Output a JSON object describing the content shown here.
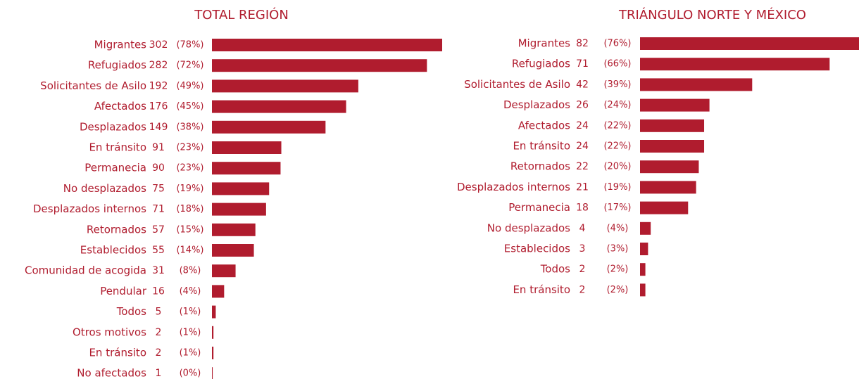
{
  "chart_data": [
    {
      "type": "bar",
      "orientation": "horizontal",
      "title": "TOTAL REGIÓN",
      "color": "#b01c2e",
      "categories": [
        "Migrantes",
        "Refugiados",
        "Solicitantes de Asilo",
        "Afectados",
        "Desplazados",
        "En tránsito",
        "Permanecia",
        "No desplazados",
        "Desplazados internos",
        "Retornados",
        "Establecidos",
        "Comunidad de acogida",
        "Pendular",
        "Todos",
        "Otros motivos",
        "En tránsito",
        "No afectados"
      ],
      "values": [
        302,
        282,
        192,
        176,
        149,
        91,
        90,
        75,
        71,
        57,
        55,
        31,
        16,
        5,
        2,
        2,
        1
      ],
      "percent_labels": [
        "(78%)",
        "(72%)",
        "(49%)",
        "(45%)",
        "(38%)",
        "(23%)",
        "(23%)",
        "(19%)",
        "(18%)",
        "(15%)",
        "(14%)",
        "(8%)",
        "(4%)",
        "(1%)",
        "(1%)",
        "(1%)",
        "(0%)"
      ]
    },
    {
      "type": "bar",
      "orientation": "horizontal",
      "title": "TRIÁNGULO NORTE Y MÉXICO",
      "color": "#b01c2e",
      "categories": [
        "Migrantes",
        "Refugiados",
        "Solicitantes de Asilo",
        "Desplazados",
        "Afectados",
        "En tránsito",
        "Retornados",
        "Desplazados internos",
        "Permanecia",
        "No desplazados",
        "Establecidos",
        "Todos",
        "En tránsito"
      ],
      "values": [
        82,
        71,
        42,
        26,
        24,
        24,
        22,
        21,
        18,
        4,
        3,
        2,
        2
      ],
      "percent_labels": [
        "(76%)",
        "(66%)",
        "(39%)",
        "(24%)",
        "(22%)",
        "(22%)",
        "(20%)",
        "(19%)",
        "(17%)",
        "(4%)",
        "(3%)",
        "(2%)",
        "(2%)"
      ]
    }
  ]
}
